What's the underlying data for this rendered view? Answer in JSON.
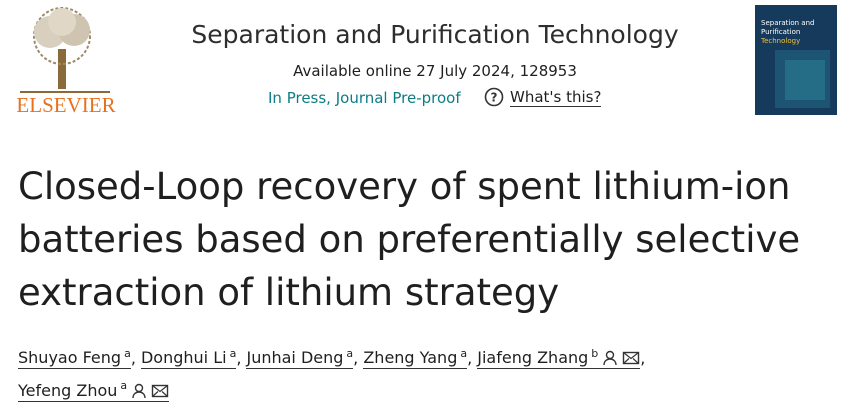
{
  "header": {
    "publisher": "ELSEVIER",
    "journal": "Separation and Purification Technology",
    "available_online": "Available online 27 July 2024, 128953",
    "status": "In Press, Journal Pre-proof",
    "help": "What's this?"
  },
  "cover": {
    "title_lines": [
      "Separation and",
      "Purification",
      "Technology"
    ]
  },
  "article": {
    "title": "Closed-Loop recovery of spent lithium-ion batteries based on preferentially selective extraction of lithium strategy",
    "authors": [
      {
        "name": "Shuyao Feng",
        "affiliation": "a"
      },
      {
        "name": "Donghui Li",
        "affiliation": "a"
      },
      {
        "name": "Junhai Deng",
        "affiliation": "a"
      },
      {
        "name": "Zheng Yang",
        "affiliation": "a"
      },
      {
        "name": "Jiafeng Zhang",
        "affiliation": "b"
      },
      {
        "name": "Yefeng Zhou",
        "affiliation": "a"
      }
    ]
  }
}
